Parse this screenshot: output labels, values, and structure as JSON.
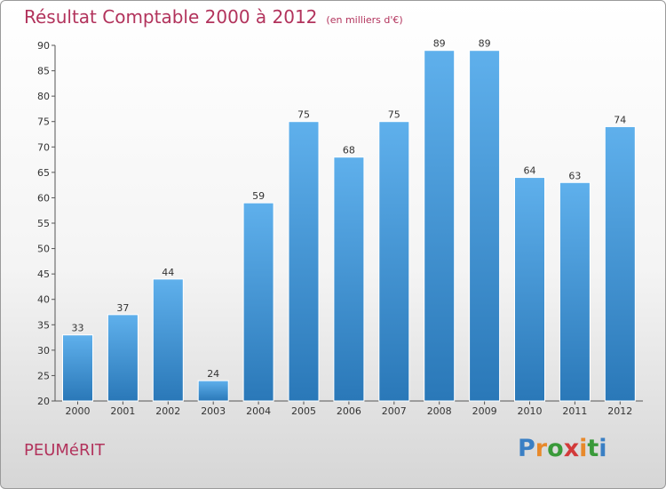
{
  "chart_data": {
    "type": "bar",
    "title": "Résultat Comptable 2000 à 2012",
    "subtitle": "(en milliers d'€)",
    "categories": [
      "2000",
      "2001",
      "2002",
      "2003",
      "2004",
      "2005",
      "2006",
      "2007",
      "2008",
      "2009",
      "2010",
      "2011",
      "2012"
    ],
    "values": [
      33,
      37,
      44,
      24,
      59,
      75,
      68,
      75,
      89,
      89,
      64,
      63,
      74
    ],
    "ylim": [
      20,
      90
    ],
    "yticks": [
      20,
      25,
      30,
      35,
      40,
      45,
      50,
      55,
      60,
      65,
      70,
      75,
      80,
      85,
      90
    ],
    "xlabel": "",
    "ylabel": "",
    "grid": false,
    "bar_color": "#4a9fe0"
  },
  "commune": "PEUMéRIT",
  "logo": {
    "letters": [
      "P",
      "r",
      "o",
      "x",
      "i",
      "t",
      "i"
    ],
    "colors": [
      "#3a7fc4",
      "#e8892b",
      "#3a9a3a",
      "#d23a3a",
      "#e8892b",
      "#3a9a3a",
      "#3a7fc4"
    ]
  }
}
